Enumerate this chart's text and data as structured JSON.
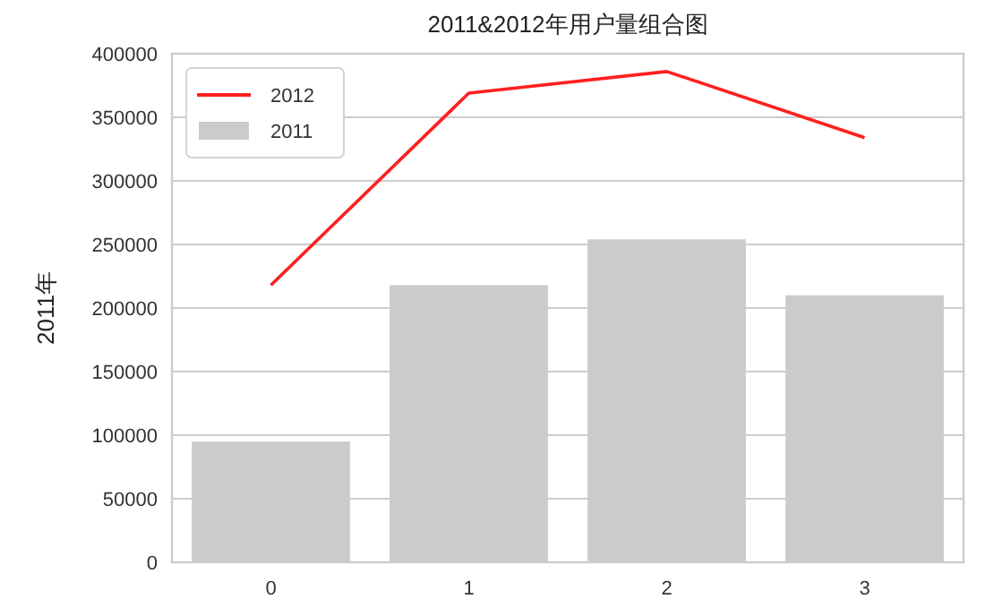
{
  "chart_data": {
    "type": "bar",
    "title": "2011&2012年用户量组合图",
    "ylabel": "2011年",
    "categories": [
      "0",
      "1",
      "2",
      "3"
    ],
    "series": [
      {
        "name": "2012",
        "type": "line",
        "color": "#ff2020",
        "values": [
          218000,
          369000,
          386000,
          334000
        ]
      },
      {
        "name": "2011",
        "color": "#cbcbcb",
        "values": [
          95000,
          218000,
          254000,
          210000
        ]
      }
    ],
    "ylim": [
      0,
      400000
    ],
    "yticks": [
      0,
      50000,
      100000,
      150000,
      200000,
      250000,
      300000,
      350000,
      400000
    ],
    "grid": "y",
    "legend": "top left"
  }
}
